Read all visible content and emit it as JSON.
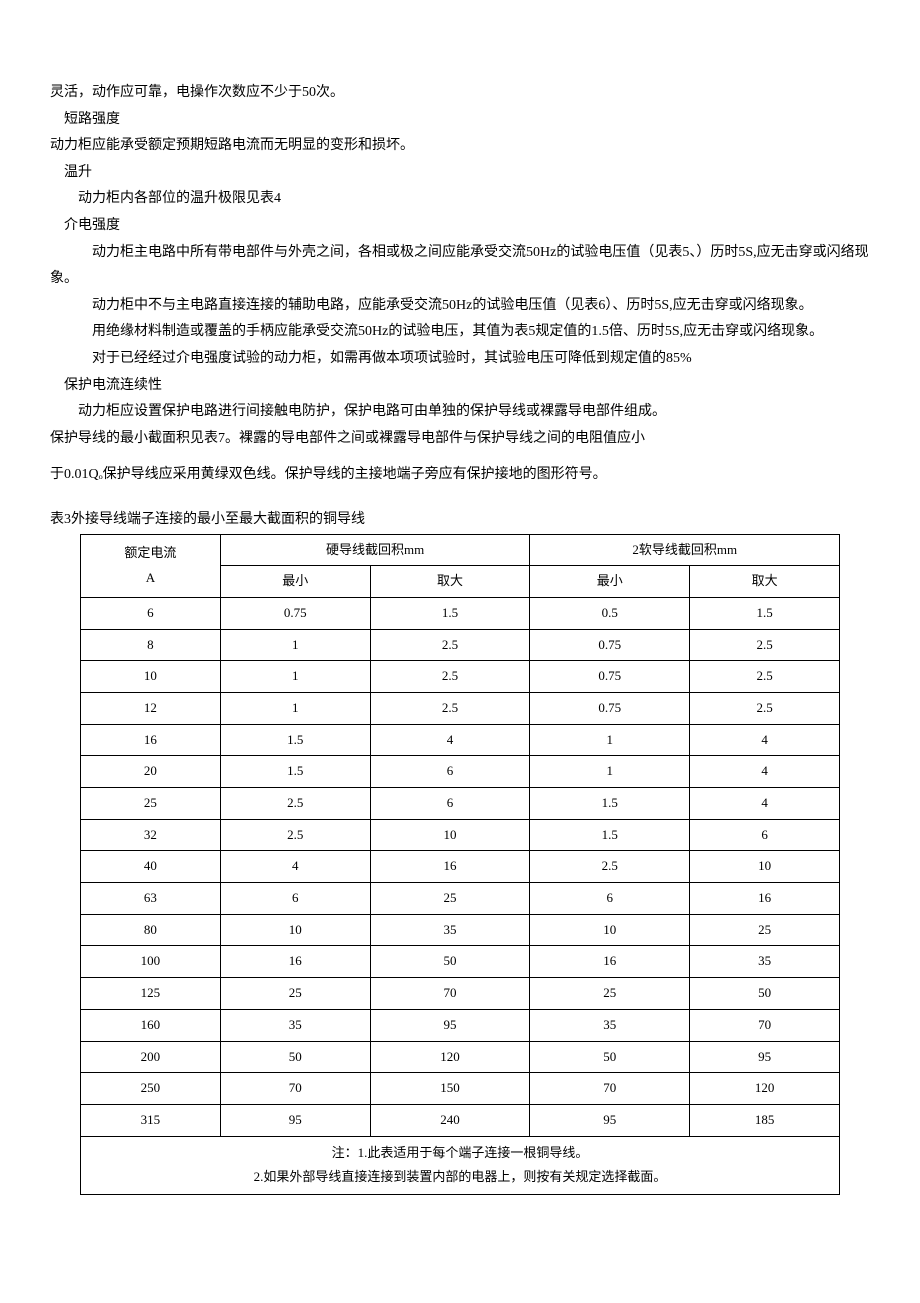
{
  "paragraphs": {
    "p1": "灵活，动作应可靠，电操作次数应不少于50次。",
    "p2": "短路强度",
    "p3": "动力柜应能承受额定预期短路电流而无明显的变形和损坏。",
    "p4": "温升",
    "p5": "动力柜内各部位的温升极限见表4",
    "p6": "介电强度",
    "p7": "动力柜主电路中所有带电部件与外壳之间，各相或极之间应能承受交流50Hz的试验电压值（见表5、）历时5S,应无击穿或闪络现象。",
    "p8": "动力柜中不与主电路直接连接的辅助电路，应能承受交流50Hz的试验电压值（见表6）、历时5S,应无击穿或闪络现象。",
    "p9": "用绝缘材料制造或覆盖的手柄应能承受交流50Hz的试验电压，其值为表5规定值的1.5倍、历时5S,应无击穿或闪络现象。",
    "p10": "对于已经经过介电强度试验的动力柜，如需再做本项项试验时，其试验电压可降低到规定值的85%",
    "p11": "保护电流连续性",
    "p12": "动力柜应设置保护电路进行间接触电防护，保护电路可由单独的保护导线或裸露导电部件组成。",
    "p13": "保护导线的最小截面积见表7。裸露的导电部件之间或裸露导电部件与保护导线之间的电阻值应小",
    "p14": "于0.01Qₒ保护导线应采用黄绿双色线。保护导线的主接地端子旁应有保护接地的图形符号。"
  },
  "table": {
    "caption": "表3外接导线端子连接的最小至最大截面积的铜导线",
    "headers": {
      "col1_line1": "额定电流",
      "col1_line2": "A",
      "col2": "硬导线截回积mm",
      "col3": "2软导线截回积mm",
      "sub_min": "最小",
      "sub_max": "取大"
    },
    "rows": [
      [
        "6",
        "0.75",
        "1.5",
        "0.5",
        "1.5"
      ],
      [
        "8",
        "1",
        "2.5",
        "0.75",
        "2.5"
      ],
      [
        "10",
        "1",
        "2.5",
        "0.75",
        "2.5"
      ],
      [
        "12",
        "1",
        "2.5",
        "0.75",
        "2.5"
      ],
      [
        "16",
        "1.5",
        "4",
        "1",
        "4"
      ],
      [
        "20",
        "1.5",
        "6",
        "1",
        "4"
      ],
      [
        "25",
        "2.5",
        "6",
        "1.5",
        "4"
      ],
      [
        "32",
        "2.5",
        "10",
        "1.5",
        "6"
      ],
      [
        "40",
        "4",
        "16",
        "2.5",
        "10"
      ],
      [
        "63",
        "6",
        "25",
        "6",
        "16"
      ],
      [
        "80",
        "10",
        "35",
        "10",
        "25"
      ],
      [
        "100",
        "16",
        "50",
        "16",
        "35"
      ],
      [
        "125",
        "25",
        "70",
        "25",
        "50"
      ],
      [
        "160",
        "35",
        "95",
        "35",
        "70"
      ],
      [
        "200",
        "50",
        "120",
        "50",
        "95"
      ],
      [
        "250",
        "70",
        "150",
        "70",
        "120"
      ],
      [
        "315",
        "95",
        "240",
        "95",
        "185"
      ]
    ],
    "notes": {
      "n1": "注：1.此表适用于每个端子连接一根铜导线。",
      "n2": "2.如果外部导线直接连接到装置内部的电器上，则按有关规定选择截面。"
    }
  },
  "style": {
    "body_font_size": 14,
    "table_font_size": 13,
    "line_height": 1.9,
    "text_color": "#000000",
    "background_color": "#ffffff",
    "border_color": "#000000",
    "col_widths": [
      "140px",
      "150px",
      "160px",
      "160px",
      "150px"
    ]
  }
}
